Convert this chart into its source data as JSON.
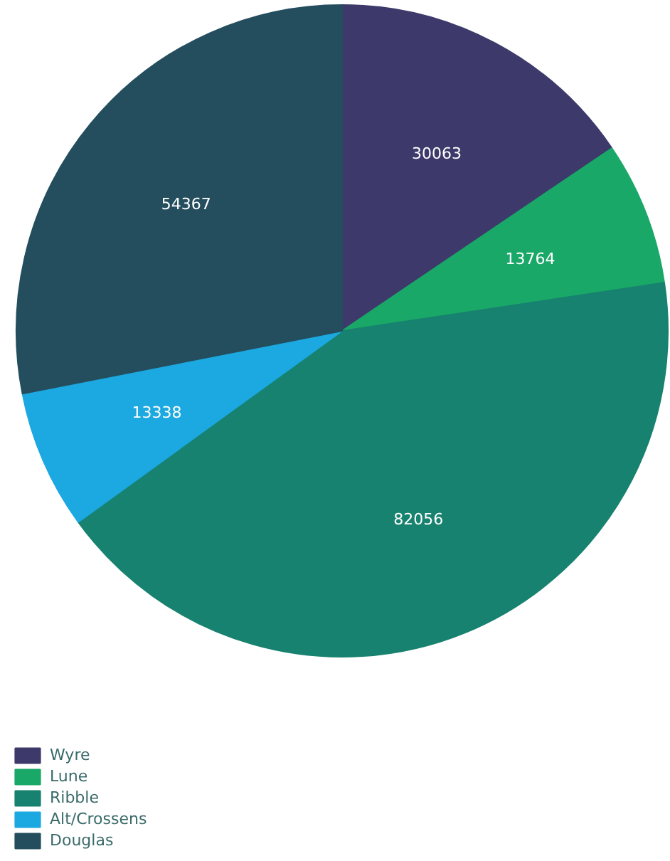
{
  "chart_data": {
    "type": "pie",
    "categories": [
      "Wyre",
      "Lune",
      "Ribble",
      "Alt/Crossens",
      "Douglas"
    ],
    "values": [
      30063,
      13764,
      82056,
      13338,
      54367
    ],
    "colors": [
      "#3d3a6b",
      "#1aa868",
      "#17826f",
      "#1ca8e0",
      "#244e5e"
    ],
    "data_labels": true,
    "legend": "bottom left"
  }
}
